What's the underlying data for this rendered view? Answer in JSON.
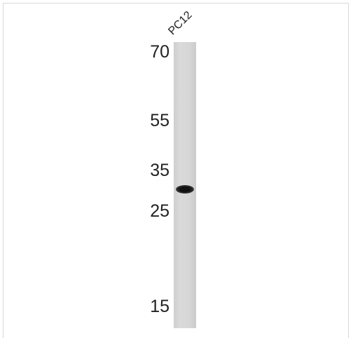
{
  "lane": {
    "label": "PC12"
  },
  "markers": [
    "70",
    "55",
    "35",
    "25",
    "15"
  ]
}
